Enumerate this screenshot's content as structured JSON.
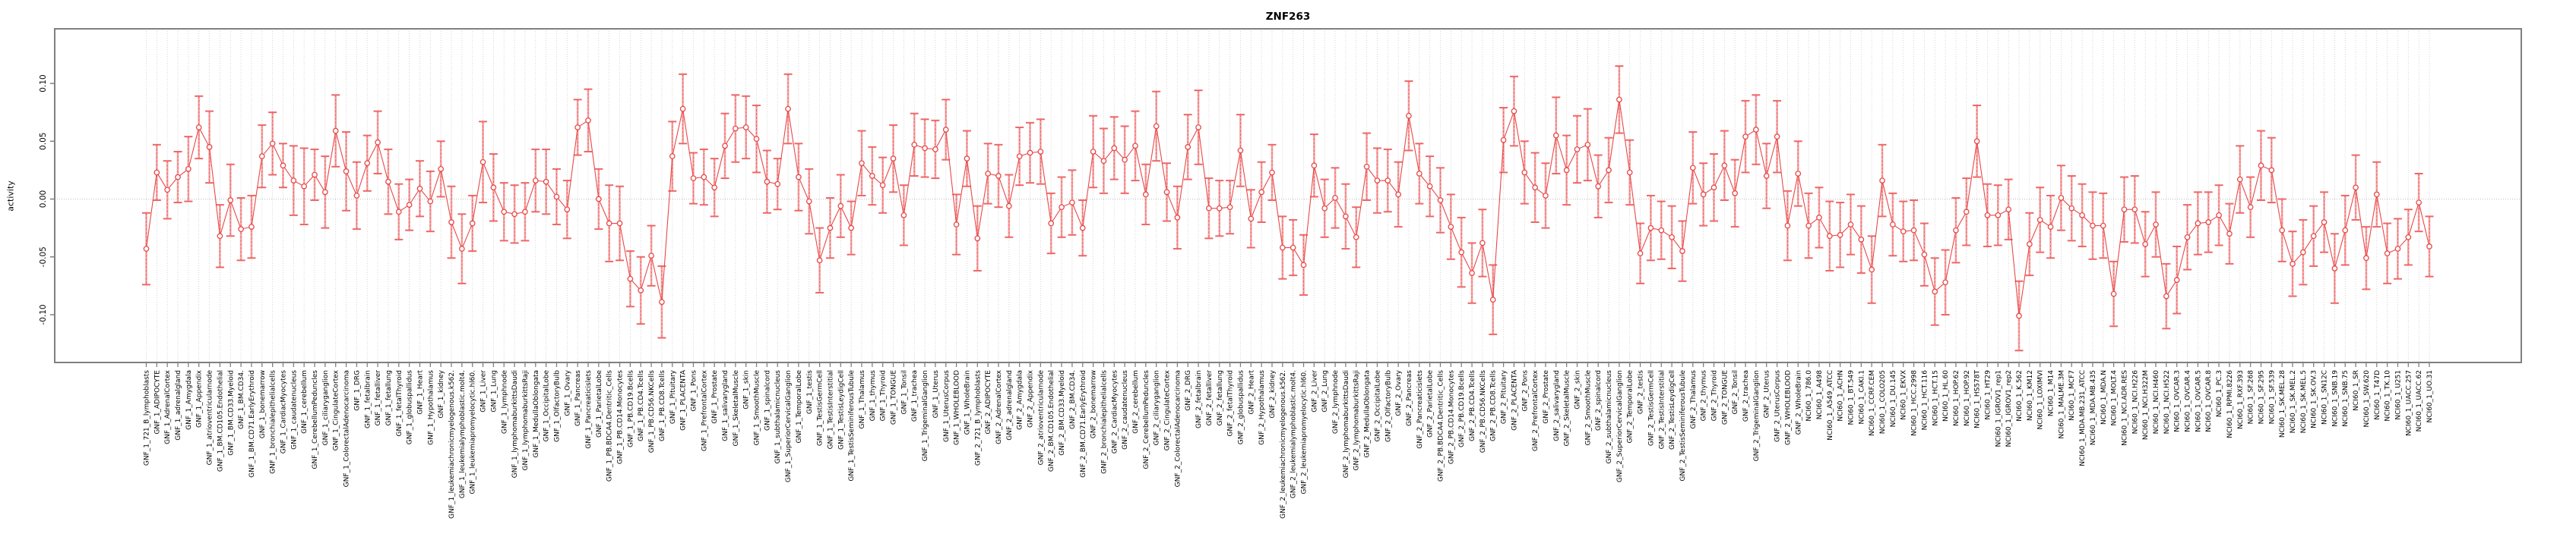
{
  "title": "ZNF263",
  "chart_data": {
    "type": "line",
    "title": "ZNF263",
    "xlabel": "",
    "ylabel": "activity",
    "ylim": [
      -0.14,
      0.145
    ],
    "yticks": [
      -0.1,
      -0.05,
      0.0,
      0.05,
      0.1
    ],
    "grid": "vertical dotted line per category; horizontal dotted line at y=0",
    "legend": "none",
    "marker": "open-circle",
    "error_bars": true,
    "colors": {
      "series": "#e84848",
      "error_bar": "#f5a8a8",
      "error_core": "#ee6666",
      "grid": "#cccccc",
      "box": "#808080",
      "title": "#000000",
      "tick_text": "#000000"
    },
    "series_name": "activity",
    "categories": [
      "GNF_1_721_B_lymphoblasts",
      "GNF_1_ADIPOCYTE",
      "GNF_1_AdrenalCortex",
      "GNF_1_adrenalgland",
      "GNF_1_Amygdala",
      "GNF_1_Appendix",
      "GNF_1_atrioventricularnode",
      "GNF_1_BM.CD105.Endothelial",
      "GNF_1_BM.CD33.Myeloid",
      "GNF_1_BM.CD34.",
      "GNF_1_BM.CD71.EarlyErythroid",
      "GNF_1_bonemarrow",
      "GNF_1_bronchialepithelialcells",
      "GNF_1_CardiacMyocytes",
      "GNF_1_caudatenucleus",
      "GNF_1_cerebellum",
      "GNF_1_CerebellumPeduncles",
      "GNF_1_ciliaryganglion",
      "GNF_1_CingulateCortex",
      "GNF_1_ColorectalAdenocarcinoma",
      "GNF_1_DRG",
      "GNF_1_fetalbrain",
      "GNF_1_fetalliver",
      "GNF_1_fetallung",
      "GNF_1_fetalThyroid",
      "GNF_1_globuspallidus",
      "GNF_1_Heart",
      "GNF_1_Hypothalamus",
      "GNF_1_kidney",
      "GNF_1_leukemiachronicmyelogenous.k562.",
      "GNF_1_leukemialymphoblastic.molt4.",
      "GNF_1_leukemiapromyelocytic.hl60.",
      "GNF_1_Liver",
      "GNF_1_Lung",
      "GNF_1_lymphnode",
      "GNF_1_lymphomaburkittsDaudi",
      "GNF_1_lymphomaburkittsRaji",
      "GNF_1_MedullaOblongata",
      "GNF_1_OccipitalLobe",
      "GNF_1_OlfactoryBulb",
      "GNF_1_Ovary",
      "GNF_1_Pancreas",
      "GNF_1_Pancreaticislets",
      "GNF_1_ParietalLobe",
      "GNF_1_PB.BDCA4.Dentritic_Cells",
      "GNF_1_PB.CD14.Monocytes",
      "GNF_1_PB.CD19.Bcells",
      "GNF_1_PB.CD4.Tcells",
      "GNF_1_PB.CD56.NKCells",
      "GNF_1_PB.CD8.Tcells",
      "GNF_1_Pituitary",
      "GNF_1_PLACENTA",
      "GNF_1_Pons",
      "GNF_1_PrefrontalCortex",
      "GNF_1_Prostate",
      "GNF_1_salivarygland",
      "GNF_1_SkeletalMuscle",
      "GNF_1_skin",
      "GNF_1_SmoothMuscle",
      "GNF_1_spinalcord",
      "GNF_1_subthalamicnucleus",
      "GNF_1_SuperiorCervicalGanglion",
      "GNF_1_TemporalLobe",
      "GNF_1_testis",
      "GNF_1_TestisGermCell",
      "GNF_1_TestisInterstitial",
      "GNF_1_TestisLeydigCell",
      "GNF_1_TestisSeminiferousTubule",
      "GNF_1_Thalamus",
      "GNF_1_thymus",
      "GNF_1_Thyroid",
      "GNF_1_TONGUE",
      "GNF_1_Tonsil",
      "GNF_1_trachea",
      "GNF_1_TrigeminalGanglion",
      "GNF_1_Uterus",
      "GNF_1_UterusCorpus",
      "GNF_1_WHOLEBLOOD",
      "GNF_1_WholeBrain",
      "GNF_2_721_B_lymphoblasts",
      "GNF_2_ADIPOCYTE",
      "GNF_2_AdrenalCortex",
      "GNF_2_adrenalgland",
      "GNF_2_Amygdala",
      "GNF_2_Appendix",
      "GNF_2_atrioventricularnode",
      "GNF_2_BM.CD105.Endothelial",
      "GNF_2_BM.CD33.Myeloid",
      "GNF_2_BM.CD34.",
      "GNF_2_BM.CD71.EarlyErythroid",
      "GNF_2_bonemarrow",
      "GNF_2_bronchialepithelialcells",
      "GNF_2_CardiacMyocytes",
      "GNF_2_caudatenucleus",
      "GNF_2_cerebellum",
      "GNF_2_CerebellumPeduncles",
      "GNF_2_ciliaryganglion",
      "GNF_2_CingulateCortex",
      "GNF_2_ColorectalAdenocarcinoma",
      "GNF_2_DRG",
      "GNF_2_fetalbrain",
      "GNF_2_fetalliver",
      "GNF_2_fetallung",
      "GNF_2_fetalThyroid",
      "GNF_2_globuspallidus",
      "GNF_2_Heart",
      "GNF_2_Hypothalamus",
      "GNF_2_kidney",
      "GNF_2_leukemiachronicmyelogenous.k562.",
      "GNF_2_leukemialymphoblastic.molt4.",
      "GNF_2_leukemiapromyelocytic.hl60.",
      "GNF_2_Liver",
      "GNF_2_Lung",
      "GNF_2_lymphnode",
      "GNF_2_lymphomaburkittsDaudi",
      "GNF_2_lymphomaburkittsRaji",
      "GNF_2_MedullaOblongata",
      "GNF_2_OccipitalLobe",
      "GNF_2_OlfactoryBulb",
      "GNF_2_Ovary",
      "GNF_2_Pancreas",
      "GNF_2_Pancreaticislets",
      "GNF_2_ParietalLobe",
      "GNF_2_PB.BDCA4.Dentritic_Cells",
      "GNF_2_PB.CD14.Monocytes",
      "GNF_2_PB.CD19.Bcells",
      "GNF_2_PB.CD4.Tcells",
      "GNF_2_PB.CD56.NKCells",
      "GNF_2_PB.CD8.Tcells",
      "GNF_2_Pituitary",
      "GNF_2_PLACENTA",
      "GNF_2_Pons",
      "GNF_2_PrefrontalCortex",
      "GNF_2_Prostate",
      "GNF_2_salivarygland",
      "GNF_2_SkeletalMuscle",
      "GNF_2_skin",
      "GNF_2_SmoothMuscle",
      "GNF_2_spinalcord",
      "GNF_2_subthalamicnucleus",
      "GNF_2_SuperiorCervicalGanglion",
      "GNF_2_TemporalLobe",
      "GNF_2_testis",
      "GNF_2_TestisGermCell",
      "GNF_2_TestisInterstitial",
      "GNF_2_TestisLeydigCell",
      "GNF_2_TestisSeminiferousTubule",
      "GNF_2_Thalamus",
      "GNF_2_thymus",
      "GNF_2_Thyroid",
      "GNF_2_TONGUE",
      "GNF_2_Tonsil",
      "GNF_2_trachea",
      "GNF_2_TrigeminalGanglion",
      "GNF_2_Uterus",
      "GNF_2_UterusCorpus",
      "GNF_2_WHOLEBLOOD",
      "GNF_2_WholeBrain",
      "NCI60_1_786.0",
      "NCI60_1_A498",
      "NCI60_1_A549_ATCC",
      "NCI60_1_ACHN",
      "NCI60_1_BT.549",
      "NCI60_1_CAKI.1",
      "NCI60_1_CCRF.CEM",
      "NCI60_1_COLO205",
      "NCI60_1_DU.145",
      "NCI60_1_EKVX",
      "NCI60_1_HCC.2998",
      "NCI60_1_HCT.116",
      "NCI60_1_HCT.15",
      "NCI60_1_HL.60",
      "NCI60_1_HOP.62",
      "NCI60_1_HOP.92",
      "NCI60_1_HS578T",
      "NCI60_1_HT29",
      "NCI60_1_IGROV1_rep1",
      "NCI60_1_IGROV1_rep2",
      "NCI60_1_K.562",
      "NCI60_1_KM12",
      "NCI60_1_LOXIMVI",
      "NCI60_1_M14",
      "NCI60_1_MALME.3M",
      "NCI60_1_MCF7",
      "NCI60_1_MDA.MB.231_ATCC",
      "NCI60_1_MDA.MB.435",
      "NCI60_1_MDA.N",
      "NCI60_1_MOLT.4",
      "NCI60_1_NCI.ADR.RES",
      "NCI60_1_NCI.H226",
      "NCI60_1_NCI.H322M",
      "NCI60_1_NCI.H460",
      "NCI60_1_NCI.H522",
      "NCI60_1_OVCAR.3",
      "NCI60_1_OVCAR.4",
      "NCI60_1_OVCAR.5",
      "NCI60_1_OVCAR.8",
      "NCI60_1_PC.3",
      "NCI60_1_RPMI.8226",
      "NCI60_1_RXF.393",
      "NCI60_1_SF.268",
      "NCI60_1_SF.295",
      "NCI60_1_SF.539",
      "NCI60_1_SK.MEL.28",
      "NCI60_1_SK.MEL.2",
      "NCI60_1_SK.MEL.5",
      "NCI60_1_SK.OV.3",
      "NCI60_1_SN12C",
      "NCI60_1_SNB.19",
      "NCI60_1_SNB.75",
      "NCI60_1_SR",
      "NCI60_1_SW.620",
      "NCI60_1_T47D",
      "NCI60_1_TK.10",
      "NCI60_1_U251",
      "NCI60_1_UACC.257",
      "NCI60_1_UACC.62",
      "NCI60_1_UO.31"
    ],
    "values": [
      -0.043,
      0.023,
      0.008,
      0.019,
      0.026,
      0.062,
      0.045,
      -0.032,
      -0.001,
      -0.026,
      -0.024,
      0.037,
      0.048,
      0.029,
      0.016,
      0.011,
      0.021,
      0.006,
      0.059,
      0.024,
      0.003,
      0.031,
      0.049,
      0.015,
      -0.011,
      -0.005,
      0.009,
      -0.002,
      0.026,
      -0.02,
      -0.043,
      -0.021,
      0.032,
      0.01,
      -0.011,
      -0.013,
      -0.011,
      0.016,
      0.015,
      0.002,
      -0.009,
      0.062,
      0.068,
      0.0,
      -0.021,
      -0.021,
      -0.069,
      -0.079,
      -0.049,
      -0.089,
      0.037,
      0.078,
      0.018,
      0.019,
      0.01,
      0.046,
      0.061,
      0.062,
      0.052,
      0.015,
      0.013,
      0.078,
      0.019,
      -0.002,
      -0.053,
      -0.025,
      -0.006,
      -0.025,
      0.031,
      0.02,
      0.012,
      0.035,
      -0.014,
      0.047,
      0.044,
      0.043,
      0.06,
      -0.022,
      0.035,
      -0.034,
      0.022,
      0.02,
      -0.006,
      0.037,
      0.04,
      0.041,
      -0.021,
      -0.007,
      -0.003,
      -0.025,
      0.041,
      0.033,
      0.044,
      0.034,
      0.046,
      0.004,
      0.063,
      0.006,
      -0.016,
      0.045,
      0.062,
      -0.008,
      -0.008,
      -0.007,
      0.042,
      -0.017,
      0.006,
      0.023,
      -0.042,
      -0.042,
      -0.057,
      0.029,
      -0.008,
      0.001,
      -0.015,
      -0.033,
      0.028,
      0.016,
      0.016,
      0.004,
      0.072,
      0.022,
      0.011,
      -0.001,
      -0.024,
      -0.046,
      -0.064,
      -0.038,
      -0.087,
      0.051,
      0.076,
      0.023,
      0.01,
      0.003,
      0.055,
      0.025,
      0.043,
      0.047,
      0.011,
      0.025,
      0.086,
      0.023,
      -0.047,
      -0.025,
      -0.027,
      -0.033,
      -0.045,
      0.027,
      0.004,
      0.01,
      0.029,
      0.005,
      0.054,
      0.06,
      0.02,
      0.054,
      -0.023,
      0.022,
      -0.023,
      -0.016,
      -0.032,
      -0.031,
      -0.022,
      -0.035,
      -0.061,
      0.016,
      -0.022,
      -0.028,
      -0.027,
      -0.048,
      -0.08,
      -0.072,
      -0.027,
      -0.011,
      0.05,
      -0.014,
      -0.014,
      -0.009,
      -0.101,
      -0.039,
      -0.018,
      -0.024,
      0.001,
      -0.008,
      -0.014,
      -0.023,
      -0.023,
      -0.082,
      -0.009,
      -0.009,
      -0.039,
      -0.022,
      -0.084,
      -0.07,
      -0.033,
      -0.021,
      -0.02,
      -0.014,
      -0.03,
      0.017,
      -0.007,
      0.029,
      0.025,
      -0.027,
      -0.056,
      -0.046,
      -0.032,
      -0.02,
      -0.06,
      -0.027,
      0.01,
      -0.051,
      0.004,
      -0.047,
      -0.043,
      -0.033,
      -0.003,
      -0.041
    ],
    "errors": [
      0.031,
      0.024,
      0.025,
      0.022,
      0.028,
      0.027,
      0.031,
      0.027,
      0.031,
      0.027,
      0.027,
      0.027,
      0.027,
      0.019,
      0.03,
      0.033,
      0.022,
      0.031,
      0.031,
      0.034,
      0.029,
      0.024,
      0.027,
      0.028,
      0.024,
      0.022,
      0.024,
      0.026,
      0.024,
      0.031,
      0.03,
      0.024,
      0.035,
      0.029,
      0.025,
      0.025,
      0.025,
      0.027,
      0.028,
      0.024,
      0.025,
      0.024,
      0.027,
      0.026,
      0.033,
      0.032,
      0.024,
      0.029,
      0.026,
      0.031,
      0.03,
      0.03,
      0.022,
      0.024,
      0.025,
      0.028,
      0.029,
      0.027,
      0.029,
      0.027,
      0.022,
      0.03,
      0.029,
      0.028,
      0.028,
      0.026,
      0.027,
      0.023,
      0.028,
      0.025,
      0.024,
      0.029,
      0.026,
      0.027,
      0.025,
      0.025,
      0.026,
      0.026,
      0.024,
      0.028,
      0.026,
      0.027,
      0.027,
      0.025,
      0.026,
      0.028,
      0.026,
      0.026,
      0.028,
      0.024,
      0.031,
      0.028,
      0.027,
      0.029,
      0.03,
      0.026,
      0.03,
      0.025,
      0.027,
      0.028,
      0.032,
      0.026,
      0.024,
      0.023,
      0.031,
      0.025,
      0.026,
      0.024,
      0.027,
      0.024,
      0.026,
      0.027,
      0.025,
      0.026,
      0.028,
      0.026,
      0.029,
      0.028,
      0.027,
      0.028,
      0.03,
      0.026,
      0.026,
      0.028,
      0.028,
      0.03,
      0.026,
      0.029,
      0.03,
      0.028,
      0.03,
      0.027,
      0.03,
      0.028,
      0.033,
      0.03,
      0.029,
      0.031,
      0.027,
      0.028,
      0.029,
      0.028,
      0.026,
      0.028,
      0.025,
      0.027,
      0.026,
      0.031,
      0.027,
      0.029,
      0.03,
      0.029,
      0.031,
      0.03,
      0.028,
      0.031,
      0.03,
      0.028,
      0.028,
      0.026,
      0.03,
      0.028,
      0.026,
      0.029,
      0.029,
      0.031,
      0.027,
      0.026,
      0.026,
      0.027,
      0.029,
      0.028,
      0.028,
      0.029,
      0.031,
      0.027,
      0.026,
      0.026,
      0.03,
      0.027,
      0.028,
      0.027,
      0.028,
      0.028,
      0.027,
      0.029,
      0.028,
      0.028,
      0.028,
      0.029,
      0.028,
      0.028,
      0.028,
      0.029,
      0.028,
      0.027,
      0.026,
      0.026,
      0.026,
      0.029,
      0.026,
      0.03,
      0.028,
      0.027,
      0.028,
      0.028,
      0.026,
      0.026,
      0.03,
      0.03,
      0.028,
      0.027,
      0.028,
      0.026,
      0.026,
      0.024,
      0.025,
      0.026
    ]
  }
}
